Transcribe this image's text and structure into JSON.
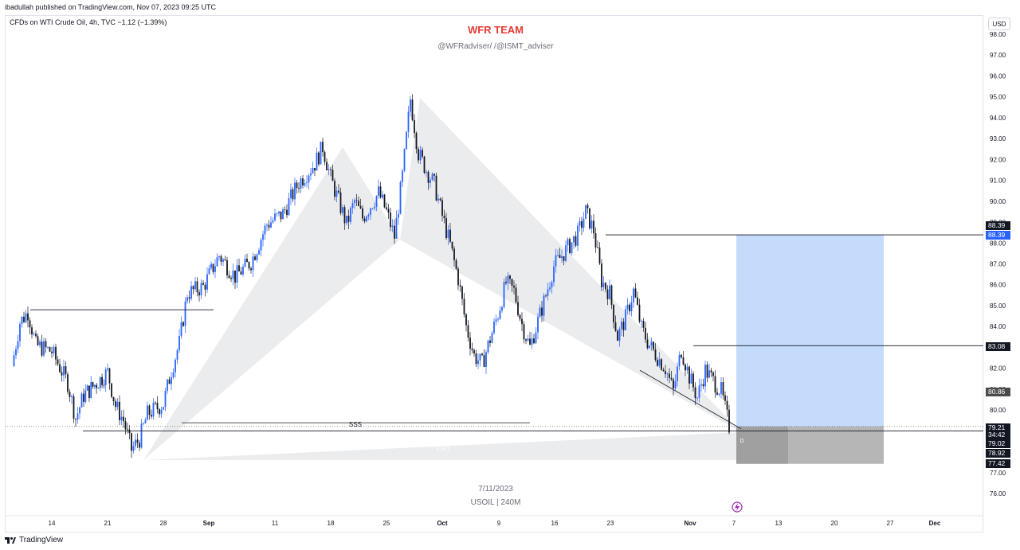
{
  "header": {
    "published": "ibadullah published on TradingView.com, Nov 07, 2023 09:25 UTC",
    "symbol_line": "CFDs on WTI Crude Oil, 4h, TVC  −1.12 (−1.39%)",
    "currency_button": "USD"
  },
  "watermark": {
    "title": "WFR TEAM",
    "subtitle": "@WFRadviser/ /@ISMT_adviser",
    "date": "7/11/2023",
    "symbol": "USOIL | 240M"
  },
  "footer": {
    "brand": "TradingView"
  },
  "chart_data": {
    "type": "candlestick",
    "title": "CFDs on WTI Crude Oil, 4h, TVC",
    "ylim": [
      75.3,
      98.8
    ],
    "y_ticks": [
      "76.00",
      "77.00",
      "78.00",
      "79.00",
      "80.00",
      "81.00",
      "82.00",
      "83.00",
      "84.00",
      "85.00",
      "86.00",
      "87.00",
      "88.00",
      "89.00",
      "90.00",
      "91.00",
      "92.00",
      "93.00",
      "94.00",
      "95.00",
      "96.00",
      "97.00",
      "98.00"
    ],
    "x_ticks": [
      "14",
      "21",
      "28",
      "Sep",
      "11",
      "18",
      "25",
      "Oct",
      "9",
      "16",
      "23",
      "Nov",
      "7",
      "13",
      "20",
      "27",
      "Dec"
    ],
    "price_path": [
      [
        "Aug 9",
        82.1
      ],
      [
        "Aug 10",
        84.2
      ],
      [
        "Aug 11",
        84.7
      ],
      [
        "Aug 12",
        83.1
      ],
      [
        "Aug 14",
        82.8
      ],
      [
        "Aug 16",
        81.3
      ],
      [
        "Aug 17",
        79.6
      ],
      [
        "Aug 18",
        80.7
      ],
      [
        "Aug 21",
        81.8
      ],
      [
        "Aug 22",
        80.2
      ],
      [
        "Aug 23",
        79.5
      ],
      [
        "Aug 24",
        78.1
      ],
      [
        "Aug 25",
        78.6
      ],
      [
        "Aug 26",
        79.8
      ],
      [
        "Aug 28",
        80.3
      ],
      [
        "Aug 29",
        81.9
      ],
      [
        "Aug 30",
        83.2
      ],
      [
        "Aug 31",
        85.6
      ],
      [
        "Sep 2",
        85.9
      ],
      [
        "Sep 4",
        87.4
      ],
      [
        "Sep 6",
        86.4
      ],
      [
        "Sep 8",
        87.1
      ],
      [
        "Sep 10",
        88.9
      ],
      [
        "Sep 12",
        89.4
      ],
      [
        "Sep 14",
        90.9
      ],
      [
        "Sep 16",
        91.8
      ],
      [
        "Sep 17",
        92.6
      ],
      [
        "Sep 18",
        91.1
      ],
      [
        "Sep 20",
        88.9
      ],
      [
        "Sep 21",
        90.0
      ],
      [
        "Sep 22",
        89.2
      ],
      [
        "Sep 24",
        90.4
      ],
      [
        "Sep 25",
        89.5
      ],
      [
        "Sep 26",
        88.3
      ],
      [
        "Sep 27",
        91.2
      ],
      [
        "Sep 28",
        94.9
      ],
      [
        "Sep 29",
        92.3
      ],
      [
        "Sep 30",
        91.5
      ],
      [
        "Oct 1",
        90.8
      ],
      [
        "Oct 2",
        89.3
      ],
      [
        "Oct 3",
        87.9
      ],
      [
        "Oct 4",
        86.3
      ],
      [
        "Oct 5",
        84.0
      ],
      [
        "Oct 6",
        82.6
      ],
      [
        "Oct 7",
        82.2
      ],
      [
        "Oct 9",
        84.6
      ],
      [
        "Oct 10",
        86.1
      ],
      [
        "Oct 11",
        85.7
      ],
      [
        "Oct 12",
        84.1
      ],
      [
        "Oct 13",
        83.0
      ],
      [
        "Oct 15",
        85.5
      ],
      [
        "Oct 16",
        86.9
      ],
      [
        "Oct 18",
        87.9
      ],
      [
        "Oct 19",
        88.4
      ],
      [
        "Oct 20",
        89.5
      ],
      [
        "Oct 21",
        88.6
      ],
      [
        "Oct 22",
        86.2
      ],
      [
        "Oct 23",
        85.6
      ],
      [
        "Oct 24",
        83.5
      ],
      [
        "Oct 25",
        84.4
      ],
      [
        "Oct 26",
        85.7
      ],
      [
        "Oct 27",
        83.9
      ],
      [
        "Oct 28",
        83.1
      ],
      [
        "Oct 30",
        82.0
      ],
      [
        "Oct 31",
        80.9
      ],
      [
        "Nov 1",
        82.9
      ],
      [
        "Nov 2",
        81.6
      ],
      [
        "Nov 3",
        80.6
      ],
      [
        "Nov 4",
        81.9
      ],
      [
        "Nov 6",
        80.9
      ],
      [
        "Nov 7",
        79.2
      ]
    ],
    "levels": [
      {
        "label": "88.39",
        "value": 88.39
      },
      {
        "label": "83.08",
        "value": 83.08
      },
      {
        "label": "80.86",
        "value": 80.86
      },
      {
        "label": "79.21",
        "value": 79.21
      },
      {
        "label": "34:42",
        "value": 78.85
      },
      {
        "label": "79.02",
        "value": 79.02
      },
      {
        "label": "78.92",
        "value": 78.92
      },
      {
        "label": "77.42",
        "value": 77.42
      }
    ],
    "annotations": {
      "sss_label": "SSS",
      "harmonic_label": "0.917",
      "point_d": "D"
    },
    "colors": {
      "up": "#2962ff",
      "down": "#131722",
      "pattern_fill": "#e6e7ea",
      "target_zone": "#bbd5fb",
      "stop_zone": "#9e9e9e",
      "title_red": "#e53935"
    }
  }
}
